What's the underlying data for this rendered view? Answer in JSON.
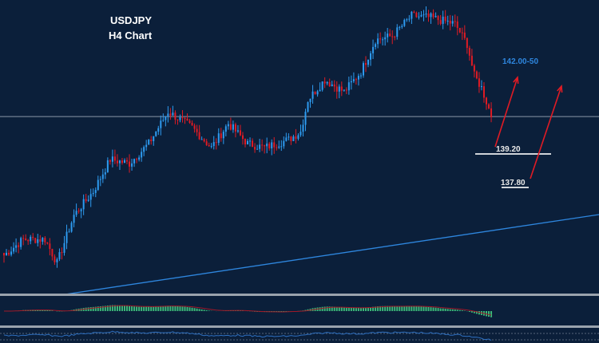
{
  "header": {
    "symbol": "USDJPY",
    "timeframe": "H4 Chart"
  },
  "colors": {
    "background": "#0b1f3a",
    "bull": "#2e9bf0",
    "bear": "#e01b24",
    "trendline": "#2e86de",
    "target": "#2e86de",
    "arrow": "#e01b24",
    "histogram": "#3cb878",
    "signal": "#a01828"
  },
  "chart_data": {
    "type": "candlestick",
    "title": "USDJPY H4 Chart",
    "approx_close_path": [
      {
        "bar": 0,
        "close": 135.12
      },
      {
        "bar": 8,
        "close": 135.76
      },
      {
        "bar": 17,
        "close": 135.76
      },
      {
        "bar": 22,
        "close": 134.81
      },
      {
        "bar": 29,
        "close": 136.72
      },
      {
        "bar": 37,
        "close": 137.67
      },
      {
        "bar": 44,
        "close": 138.95
      },
      {
        "bar": 52,
        "close": 138.79
      },
      {
        "bar": 60,
        "close": 139.58
      },
      {
        "bar": 68,
        "close": 140.86
      },
      {
        "bar": 78,
        "close": 140.22
      },
      {
        "bar": 86,
        "close": 139.42
      },
      {
        "bar": 93,
        "close": 140.38
      },
      {
        "bar": 101,
        "close": 139.58
      },
      {
        "bar": 108,
        "close": 139.42
      },
      {
        "bar": 118,
        "close": 139.74
      },
      {
        "bar": 123,
        "close": 140.06
      },
      {
        "bar": 126,
        "close": 141.33
      },
      {
        "bar": 133,
        "close": 142.13
      },
      {
        "bar": 141,
        "close": 141.65
      },
      {
        "bar": 148,
        "close": 142.45
      },
      {
        "bar": 154,
        "close": 143.72
      },
      {
        "bar": 161,
        "close": 143.88
      },
      {
        "bar": 169,
        "close": 144.68
      },
      {
        "bar": 177,
        "close": 144.61
      },
      {
        "bar": 187,
        "close": 144.36
      },
      {
        "bar": 192,
        "close": 143.56
      },
      {
        "bar": 195,
        "close": 142.29
      },
      {
        "bar": 198,
        "close": 141.81
      },
      {
        "bar": 202,
        "close": 140.7
      }
    ],
    "annotations": [
      {
        "label": "142.00-50",
        "kind": "target"
      },
      {
        "label": "139.20",
        "kind": "support"
      },
      {
        "label": "137.80",
        "kind": "support"
      }
    ],
    "horizontal_line": 140.66,
    "grid": false
  }
}
